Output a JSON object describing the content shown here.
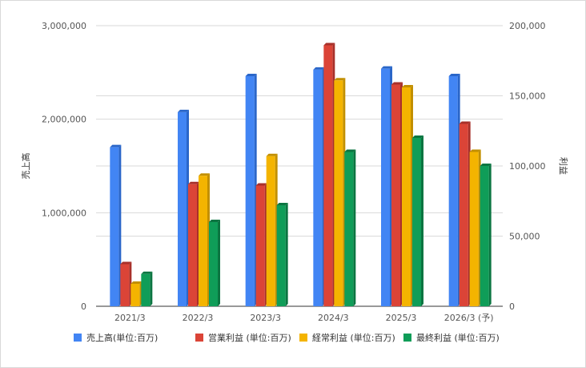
{
  "chart_data": {
    "type": "bar",
    "categories": [
      "2021/3",
      "2022/3",
      "2023/3",
      "2024/3",
      "2025/3",
      "2026/3 (予)"
    ],
    "y_left": {
      "label": "売上高",
      "min": 0,
      "max": 3000000,
      "ticks": [
        0,
        1000000,
        2000000,
        3000000
      ],
      "tick_labels": [
        "0",
        "1,000,000",
        "2,000,000",
        "3,000,000"
      ]
    },
    "y_right": {
      "label": "利益",
      "min": 0,
      "max": 200000,
      "ticks": [
        0,
        50000,
        100000,
        150000,
        200000
      ],
      "tick_labels": [
        "0",
        "50,000",
        "100,000",
        "150,000",
        "200,000"
      ]
    },
    "series": [
      {
        "name": "売上高(単位:百万)",
        "axis": "left",
        "color": "#4285f4",
        "color_dark": "#2a66c9",
        "values": [
          1700000,
          2075000,
          2460000,
          2530000,
          2540000,
          2460000
        ]
      },
      {
        "name": "営業利益 (単位:百万)",
        "axis": "right",
        "color": "#db4437",
        "color_dark": "#a8302a",
        "values": [
          30000,
          87000,
          86000,
          186000,
          158000,
          130000
        ]
      },
      {
        "name": "経常利益 (単位:百万)",
        "axis": "right",
        "color": "#f4b400",
        "color_dark": "#c28f00",
        "values": [
          16000,
          93000,
          107000,
          161000,
          156000,
          110000
        ]
      },
      {
        "name": "最終利益 (単位:百万)",
        "axis": "right",
        "color": "#0f9d58",
        "color_dark": "#0b7541",
        "values": [
          23000,
          60000,
          72000,
          110000,
          120000,
          100000
        ]
      }
    ],
    "grid": true,
    "legend_position": "bottom"
  }
}
